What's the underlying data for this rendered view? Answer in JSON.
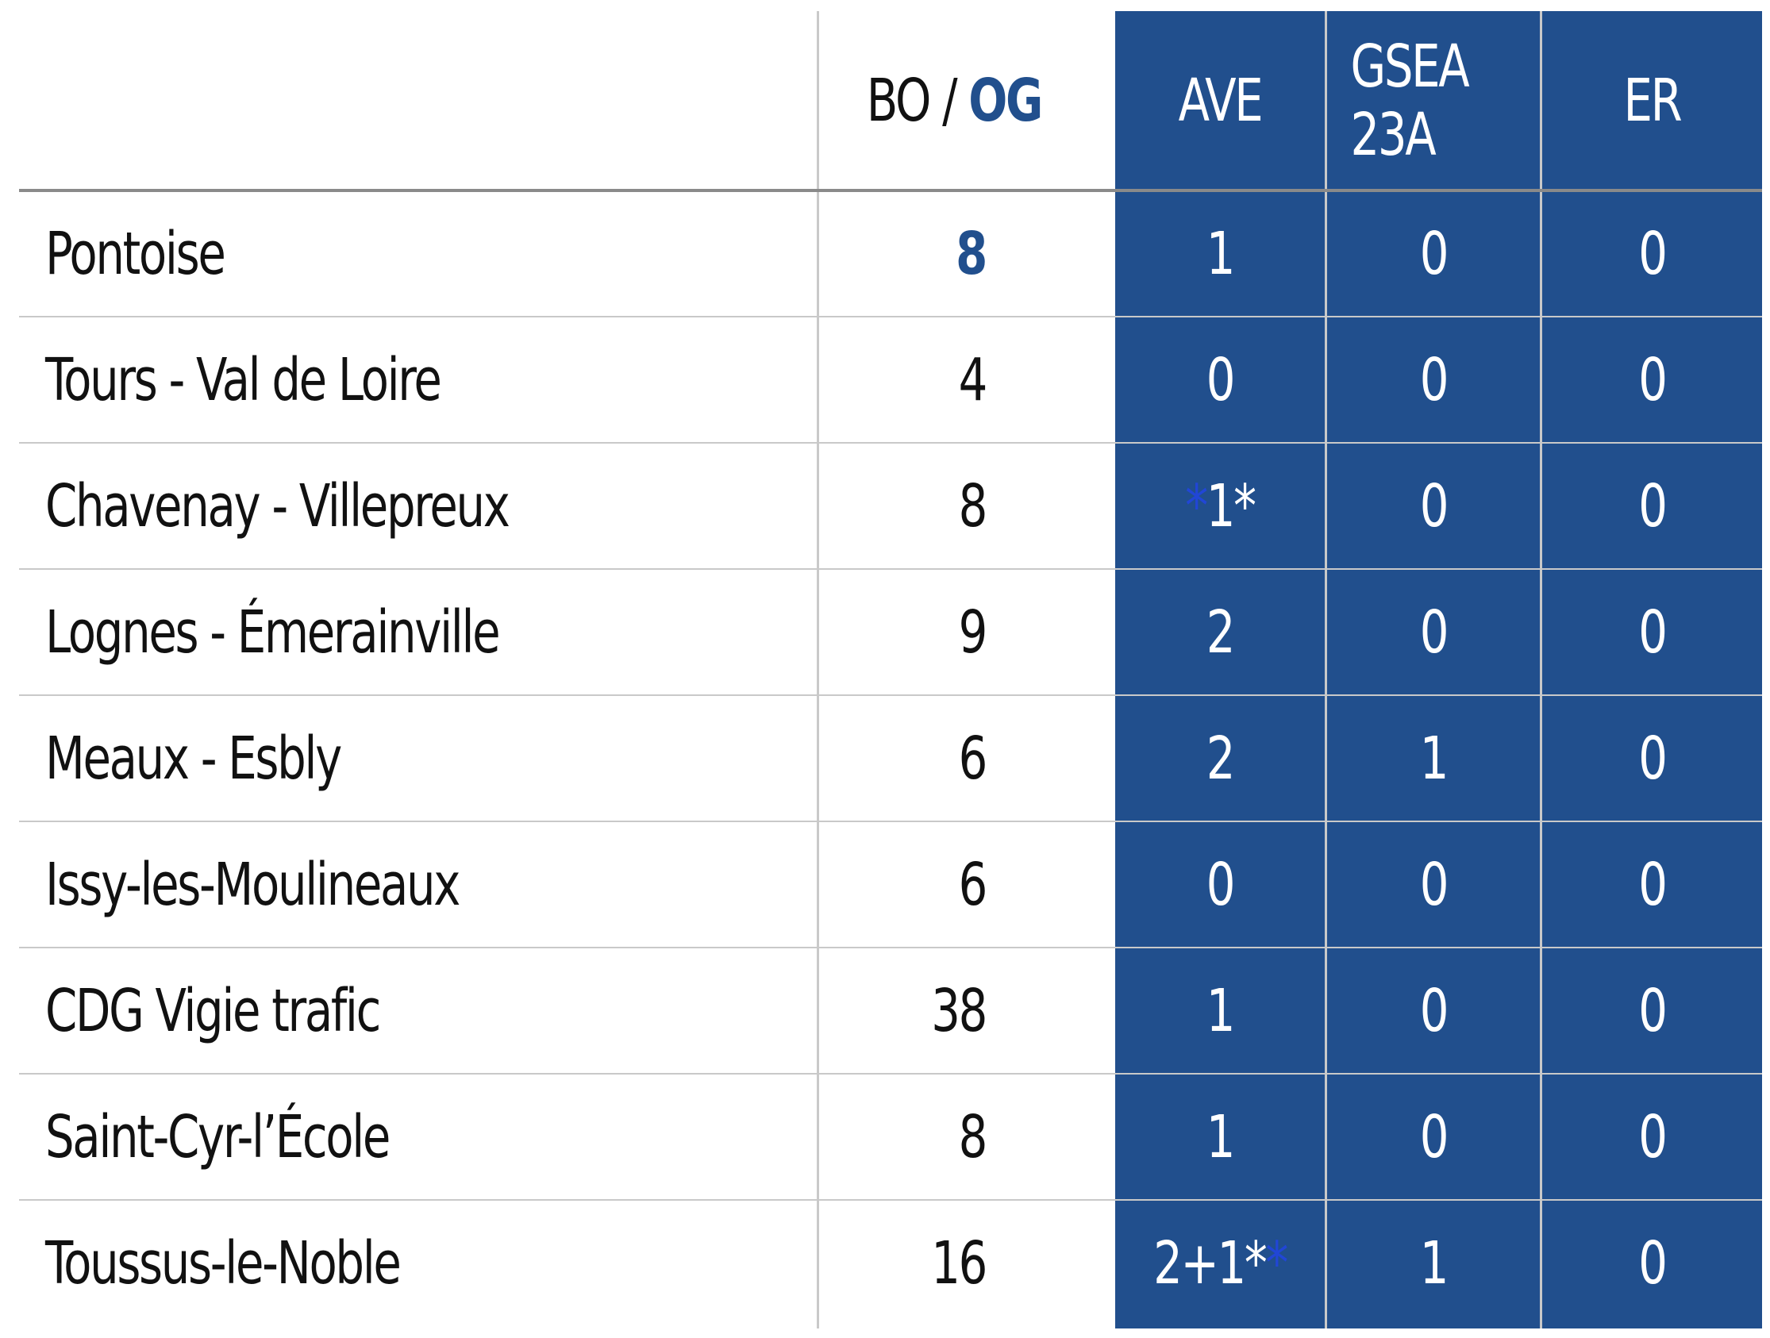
{
  "table": {
    "headers": {
      "bo_prefix": "BO / ",
      "bo_og": "OG",
      "ave": "AVE",
      "gsea": "GSEA 23A",
      "er": "ER"
    },
    "rows": [
      {
        "name": "Pontoise",
        "bo": "8",
        "ave": "1",
        "gsea": "0",
        "er": "0"
      },
      {
        "name": "Tours - Val de Loire",
        "bo": "4",
        "ave": "0",
        "gsea": "0",
        "er": "0"
      },
      {
        "name": "Chavenay - Villepreux",
        "bo": "8",
        "ave_prefix": "*",
        "ave": "1*",
        "gsea": "0",
        "er": "0"
      },
      {
        "name": "Lognes - Émerainville",
        "bo": "9",
        "ave": "2",
        "gsea": "0",
        "er": "0"
      },
      {
        "name": "Meaux - Esbly",
        "bo": "6",
        "ave": "2",
        "gsea": "1",
        "er": "0"
      },
      {
        "name": "Issy-les-Moulineaux",
        "bo": "6",
        "ave": "0",
        "gsea": "0",
        "er": "0"
      },
      {
        "name": "CDG Vigie trafic",
        "bo": "38",
        "ave": "1",
        "gsea": "0",
        "er": "0"
      },
      {
        "name": "Saint-Cyr-l’École",
        "bo": "8",
        "ave": "1",
        "gsea": "0",
        "er": "0"
      },
      {
        "name": "Toussus-le-Noble",
        "bo": "16",
        "ave": "2+1*",
        "ave_suffix": "*",
        "gsea": "1",
        "er": "0"
      }
    ]
  },
  "colors": {
    "accent_blue": "#214f8d",
    "star_blue": "#2146d6",
    "text": "#111111",
    "header_rule": "#8a8a8a",
    "row_rule": "#c9c9c9",
    "white": "#ffffff"
  }
}
